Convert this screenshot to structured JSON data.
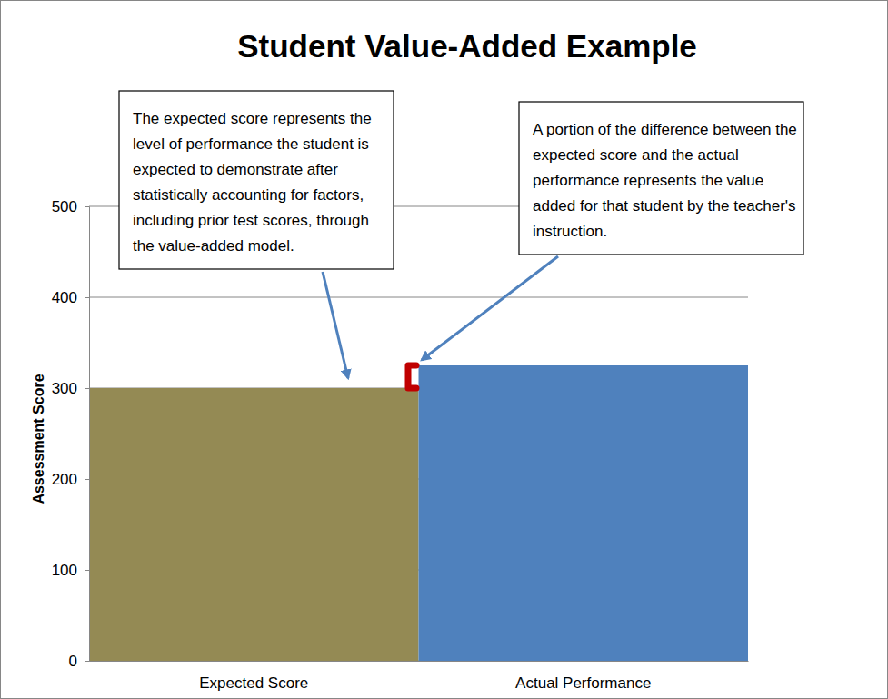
{
  "chart_data": {
    "type": "bar",
    "title": "Student Value-Added Example",
    "y_label": "Assessment Score",
    "categories": [
      "Expected Score",
      "Actual Performance"
    ],
    "values": [
      300,
      325
    ],
    "colors": [
      "#948a54",
      "#4f81bd"
    ],
    "ylim": [
      0,
      500
    ],
    "yticks": [
      0,
      100,
      200,
      300,
      400,
      500
    ],
    "grid": true,
    "annotations": [
      "The expected score represents the level of performance the student is expected to demonstrate after statistically accounting for factors, including prior test scores, through the value-added model.",
      "A portion of the difference between the expected score and the actual performance represents the value added for that student by the teacher's instruction."
    ]
  }
}
